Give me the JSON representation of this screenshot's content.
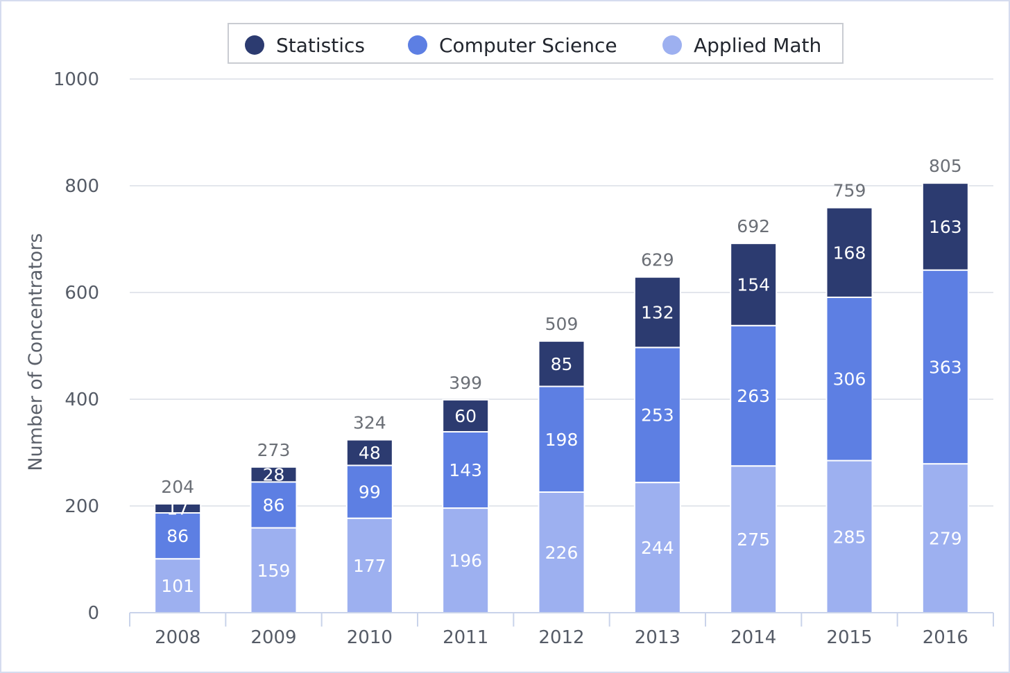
{
  "chart_data": {
    "type": "bar",
    "stacked": true,
    "title": "",
    "xlabel": "",
    "ylabel": "Number of Concentrators",
    "ylim": [
      0,
      1000
    ],
    "yticks": [
      0,
      200,
      400,
      600,
      800,
      1000
    ],
    "grid": true,
    "legend_position": "top-center",
    "categories": [
      "2008",
      "2009",
      "2010",
      "2011",
      "2012",
      "2013",
      "2014",
      "2015",
      "2016"
    ],
    "series": [
      {
        "name": "Applied Math",
        "color": "#9db0f0",
        "values": [
          101,
          159,
          177,
          196,
          226,
          244,
          275,
          285,
          279
        ]
      },
      {
        "name": "Computer Science",
        "color": "#5d7fe3",
        "values": [
          86,
          86,
          99,
          143,
          198,
          253,
          263,
          306,
          363
        ]
      },
      {
        "name": "Statistics",
        "color": "#2c3b70",
        "values": [
          17,
          28,
          48,
          60,
          85,
          132,
          154,
          168,
          163
        ]
      }
    ],
    "totals": [
      204,
      273,
      324,
      399,
      509,
      629,
      692,
      759,
      805
    ],
    "legend_order": [
      "Statistics",
      "Computer Science",
      "Applied Math"
    ]
  }
}
